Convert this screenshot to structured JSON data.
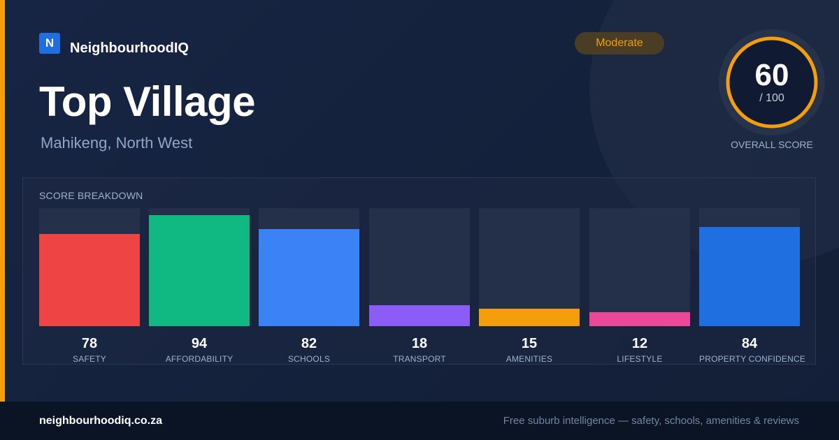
{
  "brand": {
    "logo_letter": "N",
    "name": "NeighbourhoodIQ",
    "accent_color": "#f59e0b",
    "logo_color": "#1f6fe0"
  },
  "suburb": {
    "name": "Top Village",
    "location": "Mahikeng, North West"
  },
  "rating_badge": {
    "label": "Moderate",
    "color": "#f59e0b"
  },
  "overall_score": {
    "value": "60",
    "max_label": "/ 100",
    "caption": "OVERALL SCORE",
    "fraction": 0.6,
    "ring_color": "#f59e0b"
  },
  "breakdown": {
    "title": "SCORE BREAKDOWN",
    "items": [
      {
        "label": "SAFETY",
        "value": "78",
        "color": "#ef4444"
      },
      {
        "label": "AFFORDABILITY",
        "value": "94",
        "color": "#10b981"
      },
      {
        "label": "SCHOOLS",
        "value": "82",
        "color": "#3b82f6"
      },
      {
        "label": "TRANSPORT",
        "value": "18",
        "color": "#8b5cf6"
      },
      {
        "label": "AMENITIES",
        "value": "15",
        "color": "#f59e0b"
      },
      {
        "label": "LIFESTYLE",
        "value": "12",
        "color": "#ec4899"
      },
      {
        "label": "PROPERTY CONFIDENCE",
        "value": "84",
        "color": "#1f6fe0"
      }
    ]
  },
  "footer": {
    "url": "neighbourhoodiq.co.za",
    "tagline": "Free suburb intelligence — safety, schools, amenities & reviews"
  }
}
